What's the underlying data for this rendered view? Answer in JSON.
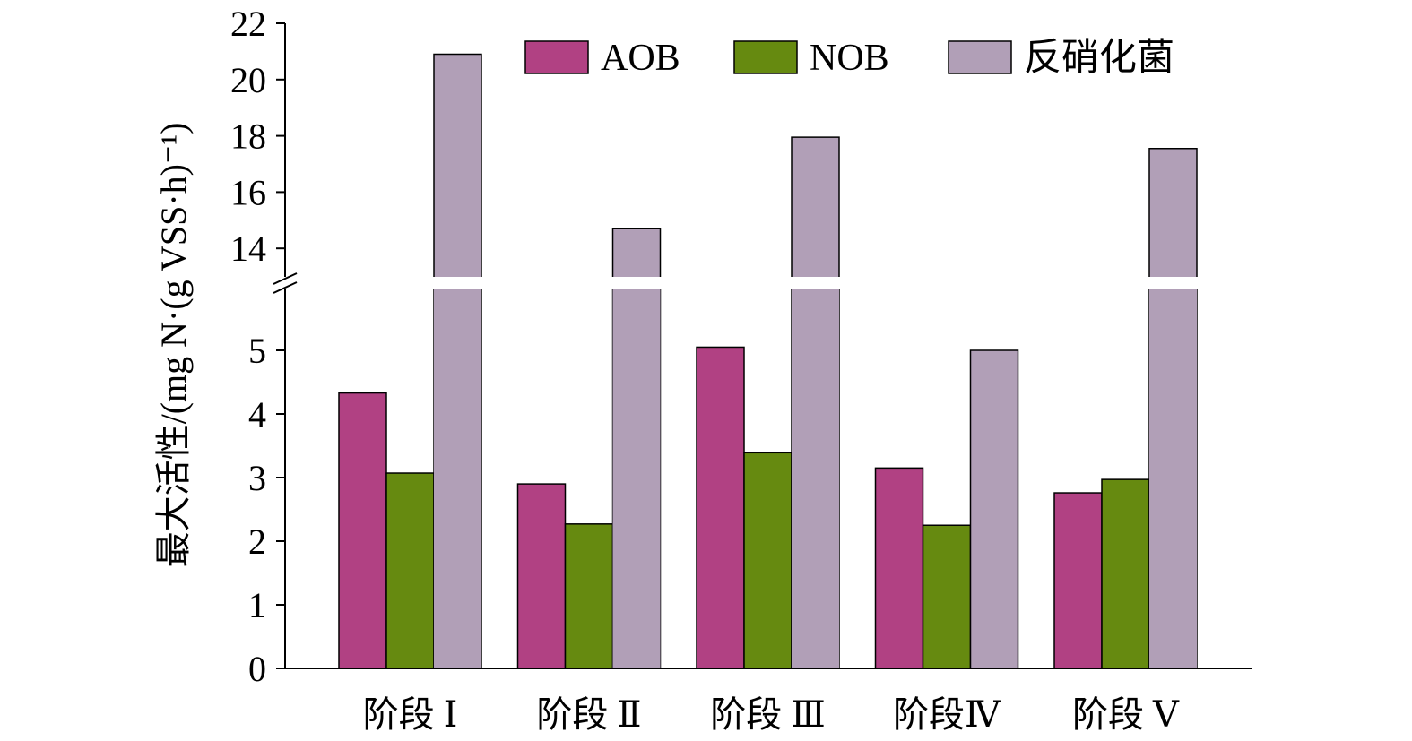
{
  "chart_data": {
    "type": "bar",
    "ylabel": "最大活性/(mg N·(g VSS·h)⁻¹)",
    "categories": [
      "阶段 Ⅰ",
      "阶段 Ⅱ",
      "阶段 Ⅲ",
      "阶段Ⅳ",
      "阶段 Ⅴ"
    ],
    "series": [
      {
        "name": "AOB",
        "color": "#b14183",
        "values": [
          4.33,
          2.9,
          5.05,
          3.15,
          2.76
        ]
      },
      {
        "name": "NOB",
        "color": "#668a10",
        "values": [
          3.07,
          2.27,
          3.39,
          2.25,
          2.97
        ]
      },
      {
        "name": "反硝化菌",
        "color": "#b19fb7",
        "values": [
          20.9,
          14.7,
          17.95,
          5.0,
          17.55
        ]
      }
    ],
    "y_axis_break": {
      "lower_range": [
        0,
        6
      ],
      "upper_range": [
        13,
        22
      ]
    },
    "lower_ticks": [
      0,
      1,
      2,
      3,
      4,
      5
    ],
    "upper_ticks": [
      14,
      16,
      18,
      20,
      22
    ],
    "legend_position": "top-right",
    "grid": false
  }
}
